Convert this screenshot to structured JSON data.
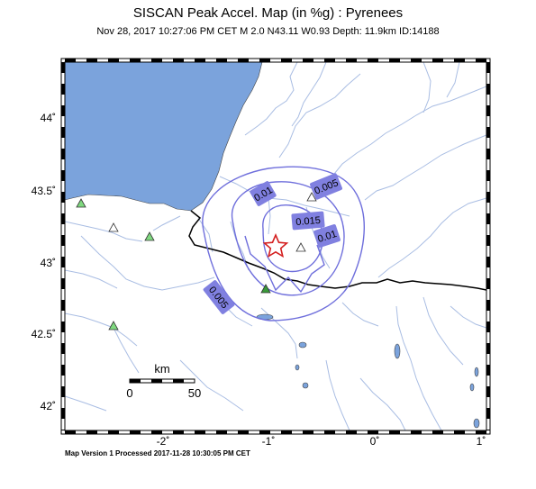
{
  "header": {
    "title": "SISCAN Peak Accel. Map (in %g) : Pyrenees",
    "subtitle": "Nov 28, 2017 10:27:06 PM CET   M 2.0   N43.11 W0.93   Depth: 11.9km   ID:14188"
  },
  "footer": {
    "text": "Map Version 1 Processed 2017-11-28 10:30:05 PM CET"
  },
  "axes": {
    "lon_ticks": [
      "-2˚",
      "-1˚",
      "0˚",
      "1˚"
    ],
    "lat_ticks": [
      "44˚",
      "43.5˚",
      "43˚",
      "42.5˚",
      "42˚"
    ]
  },
  "contours": [
    {
      "label": "0.005"
    },
    {
      "label": "0.01"
    },
    {
      "label": "0.015"
    },
    {
      "label": "0.01"
    },
    {
      "label": "0.005"
    }
  ],
  "scale_bar": {
    "unit": "km",
    "start": "0",
    "end": "50"
  },
  "colors": {
    "sea": "#7ba3dc",
    "river": "#a9bde3",
    "contour": "#6f6fdc",
    "label_box": "#8080e0",
    "epicenter": "#d42020",
    "station_green": "#7fd97f",
    "border": "#000000"
  },
  "icons": {
    "epicenter": "star-icon",
    "station": "triangle-icon"
  }
}
